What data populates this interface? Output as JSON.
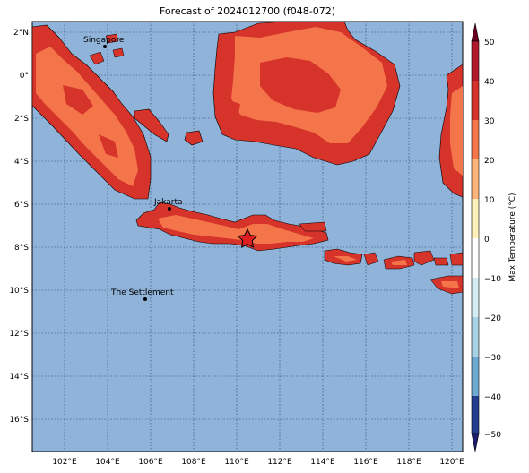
{
  "title": "Forecast of 2024012700 (f048-072)",
  "map": {
    "lat_labels": [
      "2°N",
      "0°",
      "2°S",
      "4°S",
      "6°S",
      "8°S",
      "10°S",
      "12°S",
      "14°S",
      "16°S"
    ],
    "lon_labels": [
      "102°E",
      "104°E",
      "106°E",
      "108°E",
      "110°E",
      "112°E",
      "114°E",
      "116°E",
      "118°E",
      "120°E"
    ],
    "ocean_color": "#8fb3d9",
    "cities": [
      {
        "name": "Singapore",
        "lon": 103.8,
        "lat": 1.35
      },
      {
        "name": "Jakarta",
        "lon": 106.8,
        "lat": -6.2
      },
      {
        "name": "The Settlement",
        "lon": 105.7,
        "lat": -10.45
      }
    ],
    "star_marker": {
      "icon": "star-icon",
      "lon": 110.5,
      "lat": -7.5
    }
  },
  "colorbar": {
    "label": "Max Temperature (°C)",
    "ticks": [
      "50",
      "40",
      "30",
      "20",
      "10",
      "0",
      "−10",
      "−20",
      "−30",
      "−40",
      "−50"
    ],
    "colors": [
      "#67001f",
      "#b2182b",
      "#d6332a",
      "#f4754a",
      "#fdb47a",
      "#fef0b8",
      "#ffffff",
      "#d4ecf4",
      "#a7d2e6",
      "#6da9d0",
      "#3a73b1",
      "#253b8e",
      "#1c1c6b"
    ],
    "land_fill_colors": [
      "#d6332a",
      "#f4754a"
    ]
  }
}
